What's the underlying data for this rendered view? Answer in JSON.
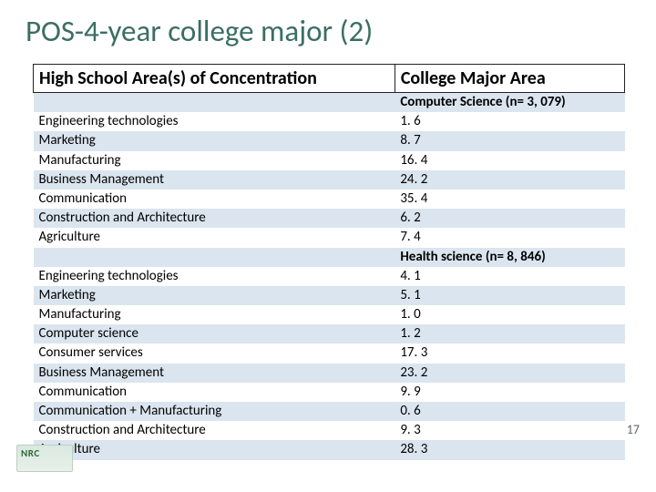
{
  "title": "POS-4-year college major (2)",
  "table": {
    "header_left": "High School Area(s) of Concentration",
    "header_right": "College Major Area",
    "rows": [
      {
        "left": "",
        "right": "Computer Science (n= 3, 079)",
        "bold_right": true,
        "band": true
      },
      {
        "left": "Engineering technologies",
        "right": "1. 6",
        "band": false
      },
      {
        "left": "Marketing",
        "right": "8. 7",
        "band": true
      },
      {
        "left": "Manufacturing",
        "right": "16. 4",
        "band": false
      },
      {
        "left": "Business Management",
        "right": "24. 2",
        "band": true
      },
      {
        "left": "Communication",
        "right": "35. 4",
        "band": false
      },
      {
        "left": "Construction and Architecture",
        "right": "6. 2",
        "band": true
      },
      {
        "left": "Agriculture",
        "right": "7. 4",
        "band": false
      },
      {
        "left": "",
        "right": "Health science (n= 8, 846)",
        "bold_right": true,
        "band": true
      },
      {
        "left": "Engineering technologies",
        "right": "4. 1",
        "band": false
      },
      {
        "left": "Marketing",
        "right": "5. 1",
        "band": true
      },
      {
        "left": "Manufacturing",
        "right": "1. 0",
        "band": false
      },
      {
        "left": "Computer science",
        "right": "1. 2",
        "band": true
      },
      {
        "left": "Consumer services",
        "right": "17. 3",
        "band": false
      },
      {
        "left": "Business Management",
        "right": "23. 2",
        "band": true
      },
      {
        "left": "Communication",
        "right": "9. 9",
        "band": false
      },
      {
        "left": "Communication + Manufacturing",
        "right": "0. 6",
        "band": true
      },
      {
        "left": "Construction and Architecture",
        "right": "9. 3",
        "band": false
      },
      {
        "left": "Agriculture",
        "right": "28. 3",
        "band": true
      }
    ]
  },
  "page_number": "17",
  "logo_text": "NRC",
  "colors": {
    "title": "#3b6e64",
    "band": "#dbe5ef",
    "background": "#ffffff"
  }
}
